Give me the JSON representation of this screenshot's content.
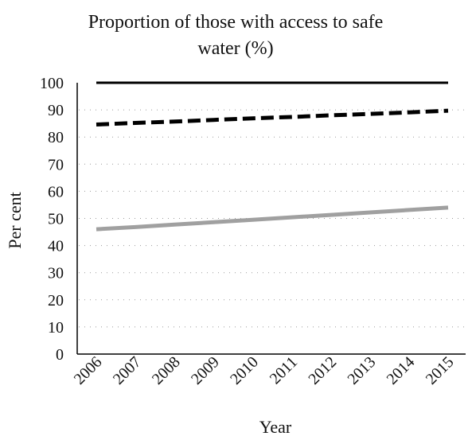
{
  "chart_data": {
    "type": "line",
    "title_lines": [
      "Proportion of those with access to safe",
      "water (%)"
    ],
    "xlabel": "Year",
    "ylabel": "Per cent",
    "ylim": [
      0,
      100
    ],
    "y_ticks": [
      0,
      10,
      20,
      30,
      40,
      50,
      60,
      70,
      80,
      90,
      100
    ],
    "categories": [
      "2006",
      "2007",
      "2008",
      "2009",
      "2010",
      "2011",
      "2012",
      "2013",
      "2014",
      "2015"
    ],
    "grid": "horizontal dotted",
    "legend": "none",
    "series": [
      {
        "style": "solid-black",
        "color": "#000000",
        "values": [
          100,
          100,
          100,
          100,
          100,
          100,
          100,
          100,
          100,
          100
        ]
      },
      {
        "style": "dashed-black",
        "color": "#000000",
        "values": [
          84.6,
          85.2,
          85.7,
          86.3,
          86.9,
          87.4,
          88.0,
          88.5,
          89.1,
          89.7
        ]
      },
      {
        "style": "solid-gray",
        "color": "#a0a0a0",
        "values": [
          46,
          46.8,
          47.7,
          48.6,
          49.5,
          50.4,
          51.3,
          52.2,
          53.1,
          54
        ]
      }
    ]
  }
}
